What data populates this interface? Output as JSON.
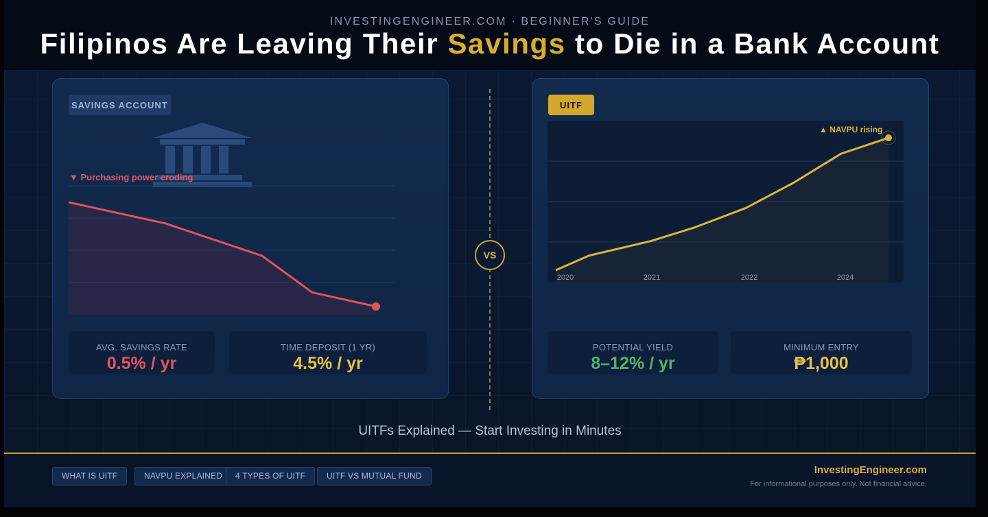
{
  "header": {
    "eyebrow": "INVESTINGENGINEER.COM · BEGINNER'S GUIDE",
    "title_before": "Filipinos Are Leaving Their ",
    "title_highlight": "Savings",
    "title_after": " to Die in a Bank Account"
  },
  "left_panel": {
    "tag": "SAVINGS ACCOUNT",
    "annotation": "▼ Purchasing power eroding",
    "stats": [
      {
        "label": "AVG. SAVINGS RATE",
        "value": "0.5% / yr"
      },
      {
        "label": "TIME DEPOSIT (1 YR)",
        "value": "4.5% / yr"
      }
    ]
  },
  "right_panel": {
    "tag": "UITF",
    "annotation": "▲ NAVPU rising",
    "stats": [
      {
        "label": "POTENTIAL YIELD",
        "value": "8–12% / yr"
      },
      {
        "label": "MINIMUM ENTRY",
        "value": "₱1,000"
      }
    ]
  },
  "vs_label": "VS",
  "subtitle": "UITFs Explained — Start Investing in Minutes",
  "footer": {
    "chips": [
      "WHAT IS UITF",
      "NAVPU EXPLAINED",
      "4 TYPES OF UITF",
      "UITF VS MUTUAL FUND"
    ],
    "brand": "InvestingEngineer.com",
    "disclaimer": "For informational purposes only. Not financial advice."
  },
  "colors": {
    "accent_gold": "#d9ad2f",
    "decline_red": "#e1535c",
    "yield_green": "#52b06a",
    "background_navy": "#0b1a33"
  },
  "chart_data": [
    {
      "type": "line",
      "title": "",
      "series": [
        {
          "values": [
            100,
            92.5,
            81,
            68,
            63
          ]
        }
      ],
      "ylim": [
        63,
        100
      ],
      "grid": true
    },
    {
      "type": "area",
      "title": "",
      "x": [
        2020.0,
        2020.35,
        2021.0,
        2021.45,
        2022.0,
        2022.5,
        2023.0,
        2023.5
      ],
      "categories": [
        "2020",
        "2021",
        "2022",
        "2024"
      ],
      "series": [
        {
          "values": [
            0,
            11,
            22,
            32,
            47,
            66,
            88,
            100
          ]
        }
      ],
      "grid": true
    }
  ]
}
